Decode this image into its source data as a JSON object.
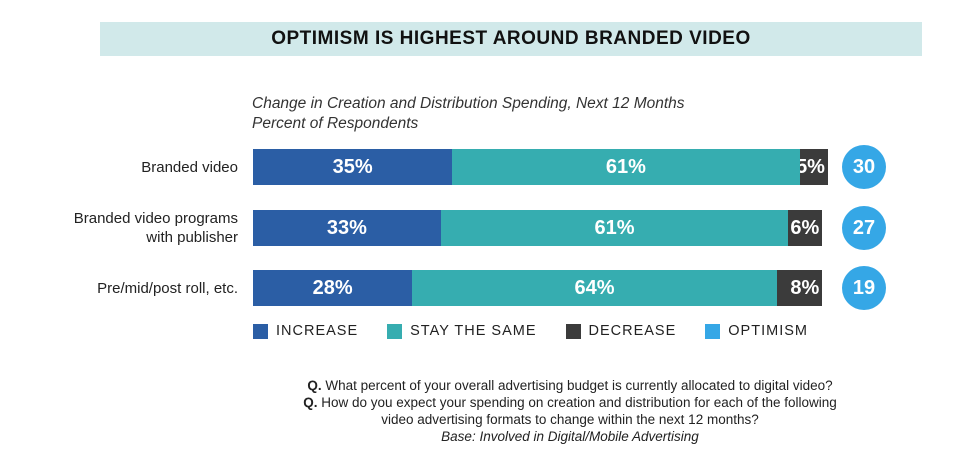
{
  "title": "OPTIMISM IS HIGHEST AROUND BRANDED VIDEO",
  "subtitle_line1": "Change in Creation and Distribution Spending, Next 12 Months",
  "subtitle_line2": "Percent of Respondents",
  "colors": {
    "increase": "#2b5ea5",
    "stay": "#36adb0",
    "decrease": "#3b3b3b",
    "optimism": "#35a7e6",
    "banner": "#d1e9ea"
  },
  "chart_data": {
    "type": "bar",
    "orientation": "horizontal",
    "stacked": true,
    "categories": [
      [
        "Branded video"
      ],
      [
        "Branded video programs",
        "with publisher"
      ],
      [
        "Pre/mid/post roll, etc."
      ]
    ],
    "series": [
      {
        "name": "INCREASE",
        "values": [
          35,
          33,
          28
        ],
        "labels": [
          "35%",
          "33%",
          "28%"
        ]
      },
      {
        "name": "STAY THE SAME",
        "values": [
          61,
          61,
          64
        ],
        "labels": [
          "61%",
          "61%",
          "64%"
        ]
      },
      {
        "name": "DECREASE",
        "values": [
          5,
          6,
          8
        ],
        "labels": [
          "5%",
          "6%",
          "8%"
        ]
      }
    ],
    "optimism": {
      "name": "OPTIMISM",
      "values": [
        30,
        27,
        19
      ]
    },
    "xlim": [
      0,
      101
    ],
    "legend": "bottom",
    "grid": false
  },
  "legend": [
    "INCREASE",
    "STAY THE SAME",
    "DECREASE",
    "OPTIMISM"
  ],
  "notes": {
    "q_prefix": "Q.",
    "q1": "What percent of your overall advertising budget is currently allocated to digital video?",
    "q2a": "How do you expect your spending on creation and distribution for each of the following",
    "q2b": "video advertising formats to change within the next 12 months?",
    "base": "Base: Involved in Digital/Mobile Advertising"
  }
}
